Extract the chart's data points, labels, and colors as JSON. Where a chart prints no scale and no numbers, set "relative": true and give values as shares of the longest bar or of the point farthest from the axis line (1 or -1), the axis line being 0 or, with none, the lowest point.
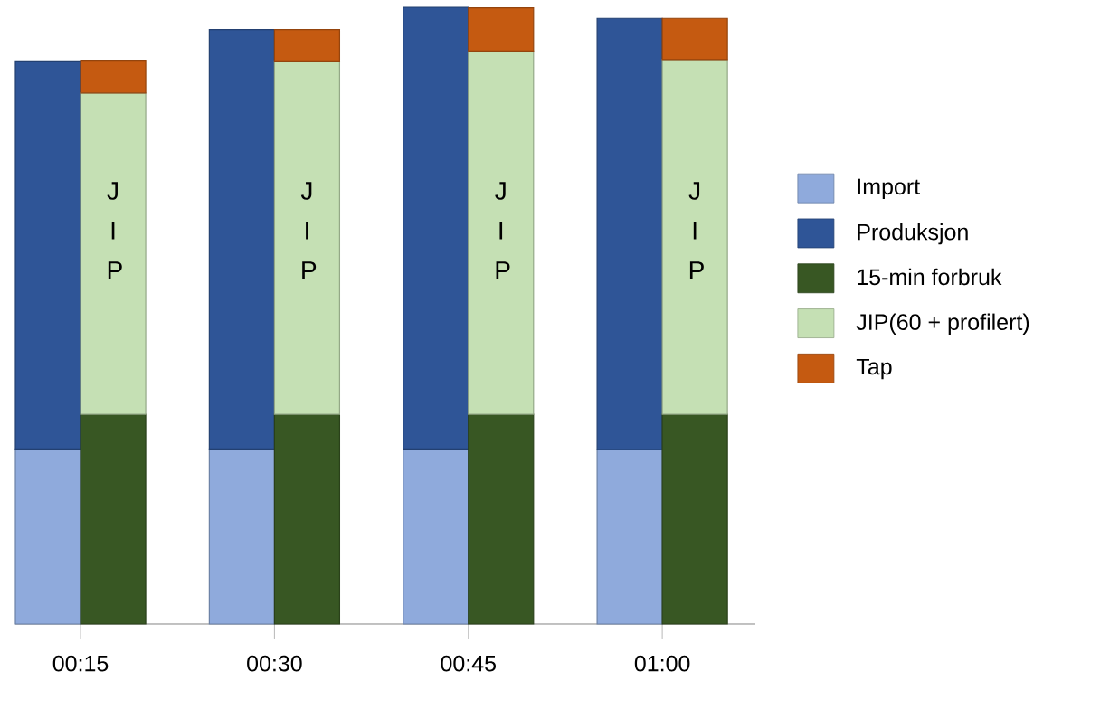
{
  "chart_data": {
    "type": "bar",
    "stacked": true,
    "relative": true,
    "legend": "right",
    "xlim": [
      0.166,
      1.12
    ],
    "xticks": [
      {
        "value": 0.25,
        "label": "00:15"
      },
      {
        "value": 0.5,
        "label": "00:30"
      },
      {
        "value": 0.75,
        "label": "00:45"
      },
      {
        "value": 1.0,
        "label": "01:00"
      }
    ],
    "x": [
      0.208,
      0.292,
      0.458,
      0.542,
      0.708,
      0.792,
      0.958,
      1.042
    ],
    "series": [
      {
        "name": "Import",
        "color": "#8faadc",
        "values": [
          0.284,
          null,
          0.284,
          null,
          0.284,
          null,
          0.283,
          null
        ]
      },
      {
        "name": "Produksjon",
        "color": "#2f5597",
        "values": [
          0.629,
          null,
          0.68,
          null,
          0.716,
          null,
          0.699,
          null
        ]
      },
      {
        "name": "15-min forbruk",
        "color": "#385723",
        "values": [
          null,
          0.34,
          null,
          0.34,
          null,
          0.34,
          null,
          0.34
        ]
      },
      {
        "name": "JIP(60 + profilert)",
        "color": "#c5e0b4",
        "values": [
          null,
          0.521,
          null,
          0.573,
          null,
          0.589,
          null,
          0.575
        ]
      },
      {
        "name": "Tap",
        "color": "#c55a11",
        "values": [
          null,
          0.053,
          null,
          0.051,
          null,
          0.07,
          null,
          0.067
        ]
      }
    ],
    "annotations": [
      "J I P",
      "J I P",
      "J I P",
      "J I P"
    ]
  }
}
